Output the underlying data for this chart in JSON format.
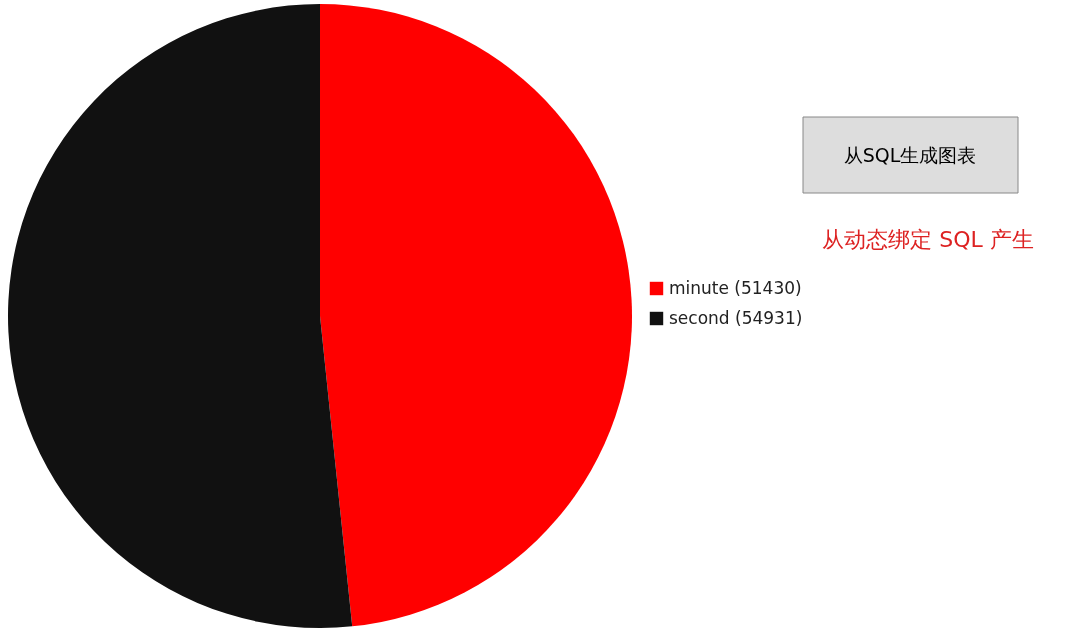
{
  "chart_data": {
    "type": "pie",
    "categories": [
      "minute (51430)",
      "second (54931)"
    ],
    "values": [
      51430,
      54931
    ],
    "colors": [
      "#ff0000",
      "#111111"
    ],
    "legend": "right",
    "annotations": [
      "从SQL生成图表",
      "从动态绑定 SQL 产生"
    ]
  }
}
